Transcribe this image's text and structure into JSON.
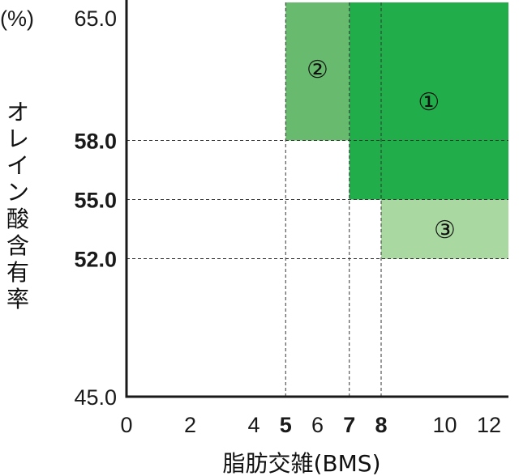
{
  "chart_data": {
    "type": "area",
    "title": "",
    "xlabel": "脂肪交雑(BMS)",
    "ylabel": "オレイン酸含有率",
    "y_unit": "(%)",
    "xlim": [
      0,
      12
    ],
    "ylim": [
      45.0,
      65.0
    ],
    "grid": false,
    "x_ticks": [
      {
        "value": 0,
        "label": "0",
        "bold": false
      },
      {
        "value": 2,
        "label": "2",
        "bold": false
      },
      {
        "value": 4,
        "label": "4",
        "bold": false
      },
      {
        "value": 5,
        "label": "5",
        "bold": true
      },
      {
        "value": 6,
        "label": "6",
        "bold": false
      },
      {
        "value": 7,
        "label": "7",
        "bold": true
      },
      {
        "value": 8,
        "label": "8",
        "bold": true
      },
      {
        "value": 10,
        "label": "10",
        "bold": false
      },
      {
        "value": 12,
        "label": "12",
        "bold": false
      }
    ],
    "y_ticks": [
      {
        "value": 65.0,
        "label": "65.0",
        "bold": false
      },
      {
        "value": 58.0,
        "label": "58.0",
        "bold": true
      },
      {
        "value": 55.0,
        "label": "55.0",
        "bold": true
      },
      {
        "value": 52.0,
        "label": "52.0",
        "bold": true
      },
      {
        "value": 45.0,
        "label": "45.0",
        "bold": false
      }
    ],
    "regions": [
      {
        "label": "①",
        "x": [
          7,
          12
        ],
        "y": [
          55.0,
          65.0
        ],
        "color": "#22ad4b"
      },
      {
        "label": "②",
        "x": [
          5,
          7
        ],
        "y": [
          58.0,
          65.0
        ],
        "color": "#68bb6e"
      },
      {
        "label": "③",
        "x": [
          8,
          12
        ],
        "y": [
          52.0,
          55.0
        ],
        "color": "#a9d9a0"
      }
    ],
    "guide_lines": {
      "x": [
        5,
        7,
        8
      ],
      "y": [
        58.0,
        55.0,
        52.0
      ]
    }
  }
}
